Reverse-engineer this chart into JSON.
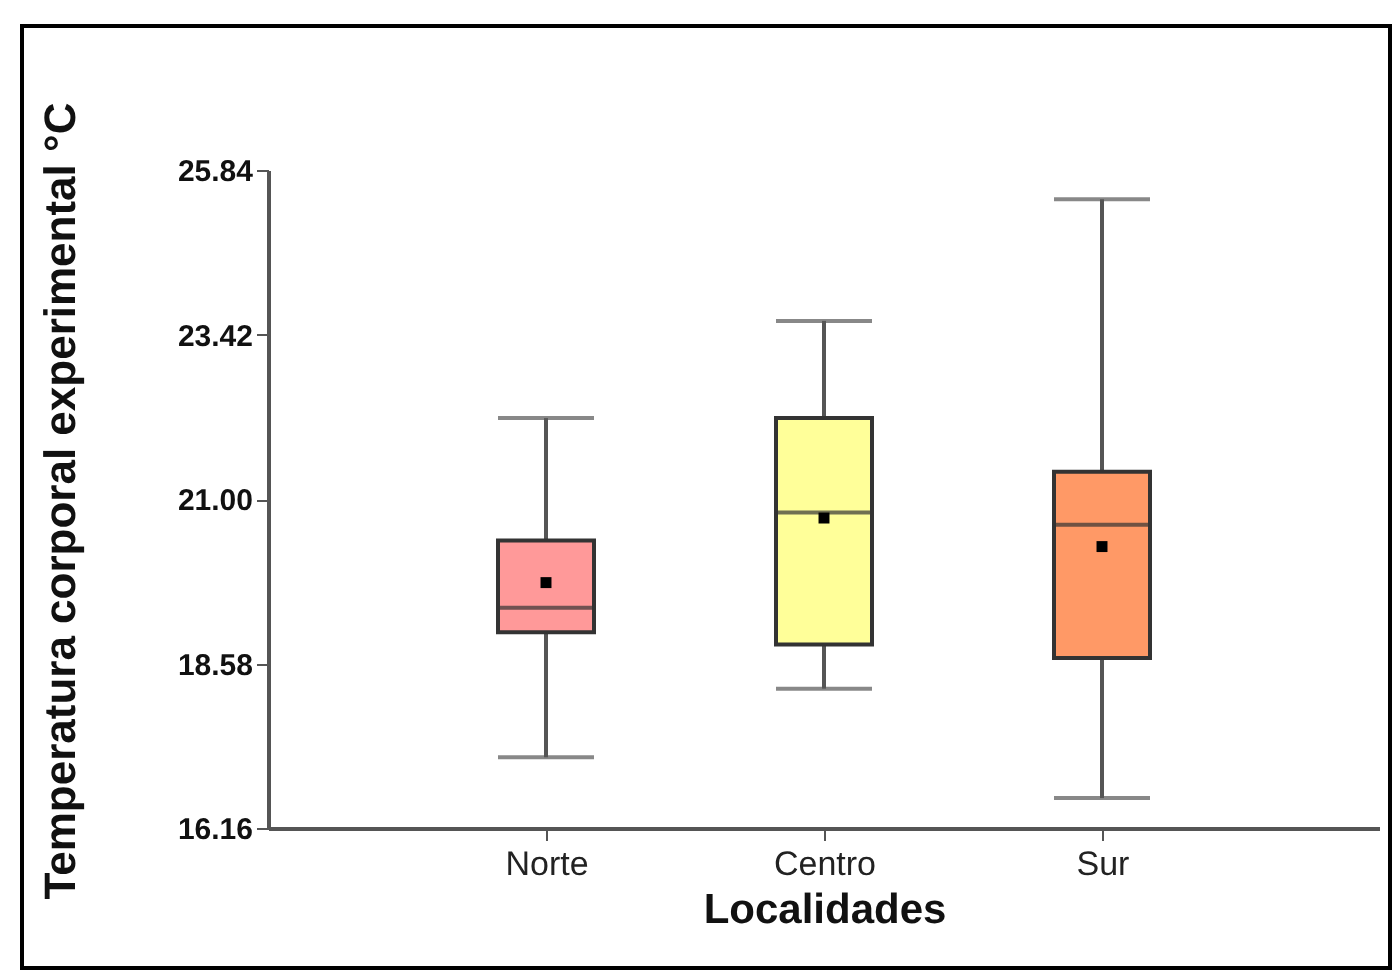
{
  "chart_data": {
    "type": "box",
    "xlabel": "Localidades",
    "ylabel": "Temperatura corporal experimental °C",
    "categories": [
      "Norte",
      "Centro",
      "Sur"
    ],
    "colors": [
      "#ff9999",
      "#ffff99",
      "#ff9966"
    ],
    "boxes": [
      {
        "low": 17.2,
        "q1": 19.04,
        "median": 19.4,
        "q3": 20.39,
        "high": 22.19,
        "mean": 19.77
      },
      {
        "low": 18.21,
        "q1": 18.86,
        "median": 20.8,
        "q3": 22.19,
        "high": 23.62,
        "mean": 20.72
      },
      {
        "low": 16.6,
        "q1": 18.66,
        "median": 20.62,
        "q3": 21.4,
        "high": 25.41,
        "mean": 20.3
      }
    ],
    "ylim": [
      16.16,
      25.84
    ],
    "yticks": [
      16.16,
      18.58,
      {
        "value": 21,
        "label": "21.00"
      },
      23.42,
      25.84
    ]
  }
}
